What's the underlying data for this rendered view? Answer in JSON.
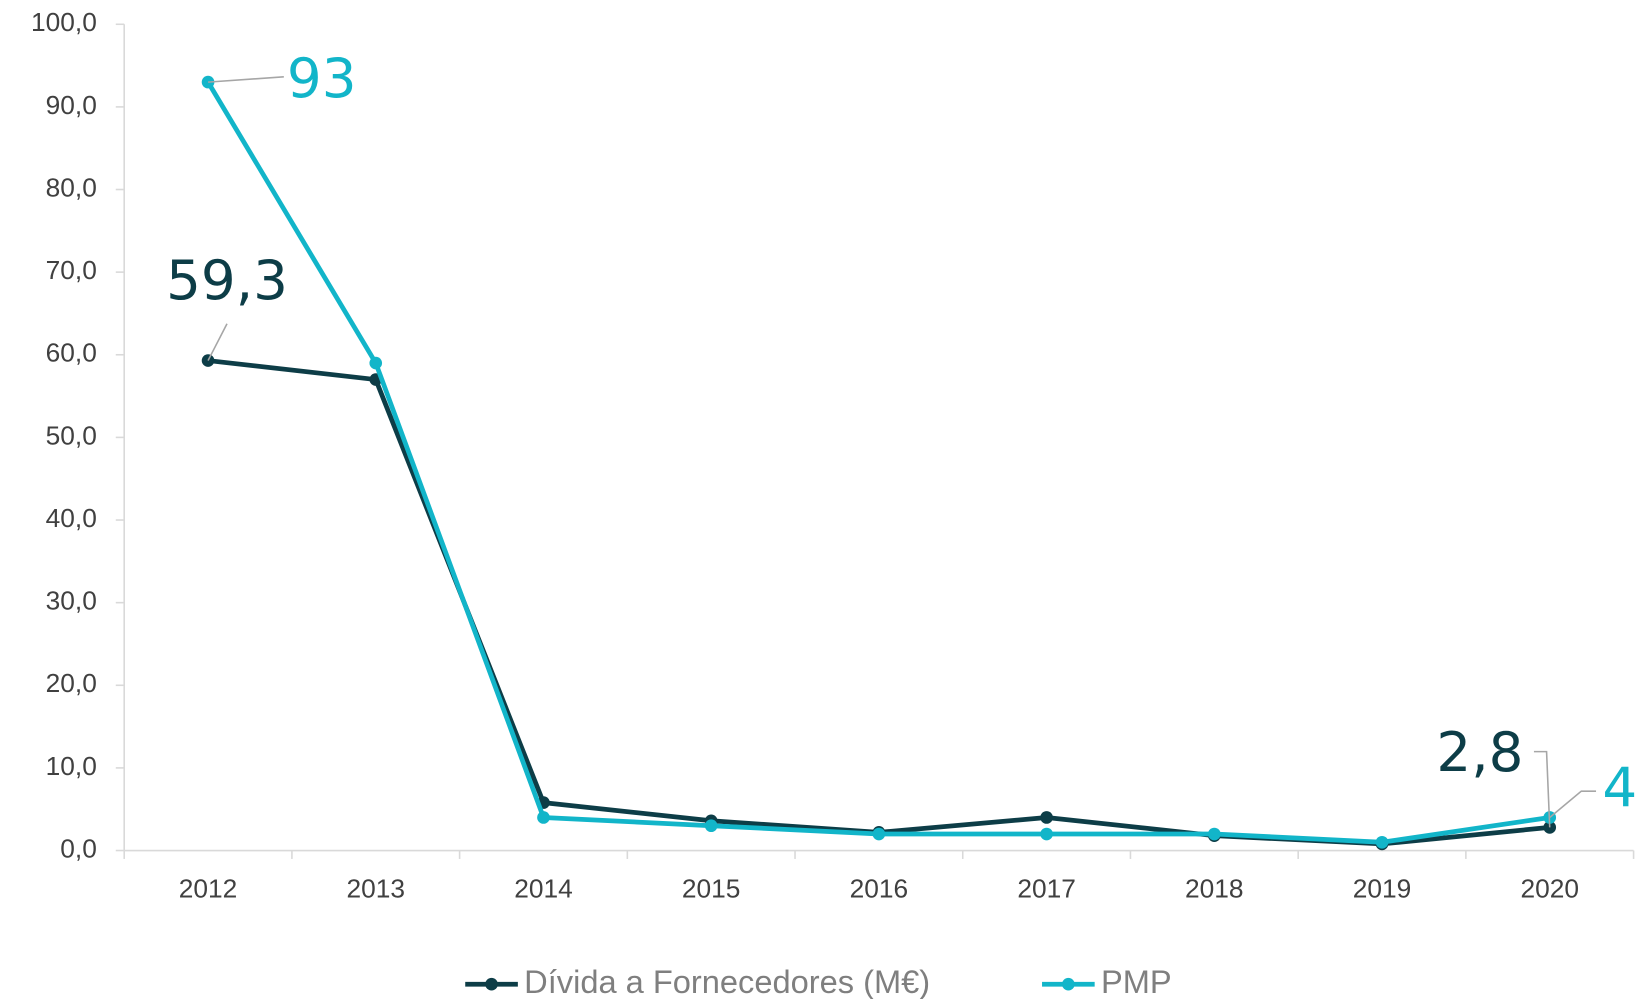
{
  "chart_data": {
    "type": "line",
    "categories": [
      "2012",
      "2013",
      "2014",
      "2015",
      "2016",
      "2017",
      "2018",
      "2019",
      "2020"
    ],
    "series": [
      {
        "name": "Dívida a Fornecedores (M€)",
        "color": "#0d3d47",
        "values": [
          59.3,
          57,
          5.8,
          3.6,
          2.2,
          4.0,
          1.8,
          0.8,
          2.8
        ],
        "value_labels": [
          "59,3",
          null,
          null,
          null,
          null,
          null,
          null,
          null,
          "2,8"
        ]
      },
      {
        "name": "PMP",
        "color": "#12b5c9",
        "values": [
          93,
          59,
          4,
          3,
          2,
          2,
          2,
          1,
          4
        ],
        "value_labels": [
          "93",
          null,
          null,
          null,
          null,
          null,
          null,
          null,
          "4"
        ]
      }
    ],
    "ylim": [
      0,
      100
    ],
    "yticks": [
      {
        "value": 0,
        "label": "0,0"
      },
      {
        "value": 10,
        "label": "10,0"
      },
      {
        "value": 20,
        "label": "20,0"
      },
      {
        "value": 30,
        "label": "30,0"
      },
      {
        "value": 40,
        "label": "40,0"
      },
      {
        "value": 50,
        "label": "50,0"
      },
      {
        "value": 60,
        "label": "60,0"
      },
      {
        "value": 70,
        "label": "70,0"
      },
      {
        "value": 80,
        "label": "80,0"
      },
      {
        "value": 90,
        "label": "90,0"
      },
      {
        "value": 100,
        "label": "100,0"
      }
    ],
    "grid": false,
    "legend": "bottom"
  }
}
